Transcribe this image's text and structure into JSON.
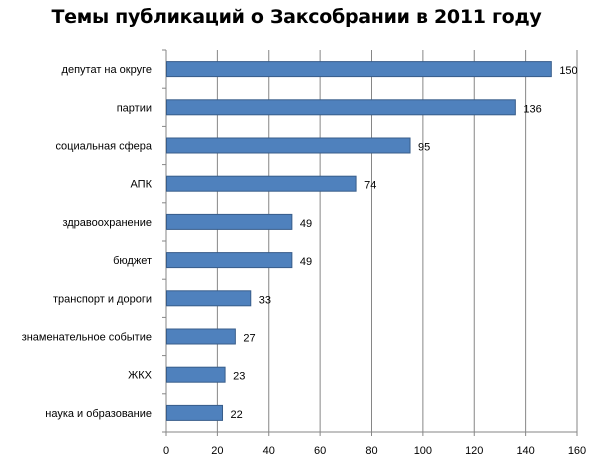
{
  "chart_data": {
    "type": "bar",
    "orientation": "horizontal",
    "title": "Темы публикаций о Заксобрании в 2011 году",
    "categories": [
      "депутат на округе",
      "партии",
      "социальная сфера",
      "АПК",
      "здравоохранение",
      "бюджет",
      "транспорт и дороги",
      "знаменательное событие",
      "ЖКХ",
      "наука и образование"
    ],
    "values": [
      150,
      136,
      95,
      74,
      49,
      49,
      33,
      27,
      23,
      22
    ],
    "xlim": [
      0,
      160
    ],
    "xticks": [
      "0",
      "20",
      "40",
      "60",
      "80",
      "100",
      "120",
      "140",
      "160"
    ],
    "grid": "vertical",
    "bar_color": "#4f81bd",
    "bar_edge_color": "#385d8a",
    "grid_color": "#868686"
  }
}
